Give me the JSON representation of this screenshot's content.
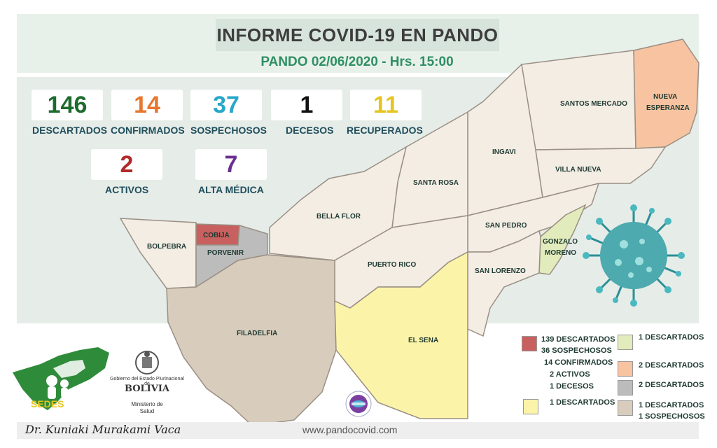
{
  "header": {
    "title": "INFORME COVID-19 EN PANDO",
    "subtitle": "PANDO 02/06/2020 - Hrs. 15:00"
  },
  "stats": [
    {
      "value": "146",
      "label": "DESCARTADOS",
      "color": "#1e6b2e"
    },
    {
      "value": "14",
      "label": "CONFIRMADOS",
      "color": "#e8772e"
    },
    {
      "value": "37",
      "label": "SOSPECHOSOS",
      "color": "#27a7c9"
    },
    {
      "value": "1",
      "label": "DECESOS",
      "color": "#111111"
    },
    {
      "value": "11",
      "label": "RECUPERADOS",
      "color": "#e6c51f"
    },
    {
      "value": "2",
      "label": "ACTIVOS",
      "color": "#b02a2a"
    },
    {
      "value": "7",
      "label": "ALTA MÉDICA",
      "color": "#6a2f8f"
    }
  ],
  "regions": {
    "santos_mercado": "SANTOS MERCADO",
    "nueva_esperanza_1": "NUEVA",
    "nueva_esperanza_2": "ESPERANZA",
    "ingavi": "INGAVI",
    "villa_nueva": "VILLA NUEVA",
    "santa_rosa": "SANTA ROSA",
    "bella_flor": "BELLA FLOR",
    "san_pedro": "SAN PEDRO",
    "gonzalo_moreno_1": "GONZALO",
    "gonzalo_moreno_2": "MORENO",
    "bolpebra": "BOLPEBRA",
    "cobija": "COBIJA",
    "porvenir": "PORVENIR",
    "puerto_rico": "PUERTO RICO",
    "san_lorenzo": "SAN LORENZO",
    "filadelfia": "FILADELFIA",
    "el_sena": "EL SENA"
  },
  "legend": {
    "red": [
      "139 DESCARTADOS",
      "36  SOSPECHOSOS",
      "14 CONFIRMADOS",
      "2 ACTIVOS",
      "1 DECESOS"
    ],
    "yellow": "1 DESCARTADOS",
    "green": "1 DESCARTADOS",
    "orange": "2 DESCARTADOS",
    "gray": "2 DESCARTADOS",
    "tan": [
      "1 DESCARTADOS",
      "1 SOSPECHOSOS"
    ]
  },
  "colors": {
    "red": "#c8605f",
    "yellow": "#fbf3a8",
    "green": "#e2ebbb",
    "orange": "#f7c3a0",
    "gray": "#bcbcbc",
    "tan": "#d8ccbd",
    "default": "#f3ede4"
  },
  "logos": {
    "sedes": "SEDES",
    "gov_line1": "Gobierno del Estado Plurinacional de",
    "gov_line2": "BOLIVIA",
    "ministry_line1": "Ministerio de",
    "ministry_line2": "Salud"
  },
  "footer": {
    "signature": "Dr. Kuniaki Murakami Vaca",
    "website": "www.pandocovid.com"
  }
}
